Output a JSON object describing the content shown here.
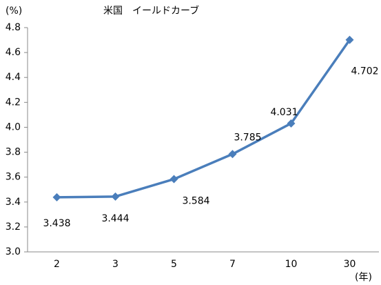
{
  "chart_data": {
    "type": "line",
    "title": "米国　イールドカーブ",
    "y_label": "(%)",
    "x_label": "(年)",
    "categories": [
      "2",
      "3",
      "5",
      "7",
      "10",
      "30"
    ],
    "series": [
      {
        "name": "米国",
        "color": "#4a7ebb",
        "values": [
          3.438,
          3.444,
          3.584,
          3.785,
          4.031,
          4.702
        ]
      }
    ],
    "ylim": [
      3.0,
      4.8
    ],
    "yticks": [
      {
        "value": 3.0,
        "label": "3.0"
      },
      3.2,
      3.4,
      3.6,
      3.8,
      {
        "value": 4.0,
        "label": "4.0"
      },
      4.2,
      4.4,
      4.6,
      4.8
    ],
    "grid": false
  }
}
